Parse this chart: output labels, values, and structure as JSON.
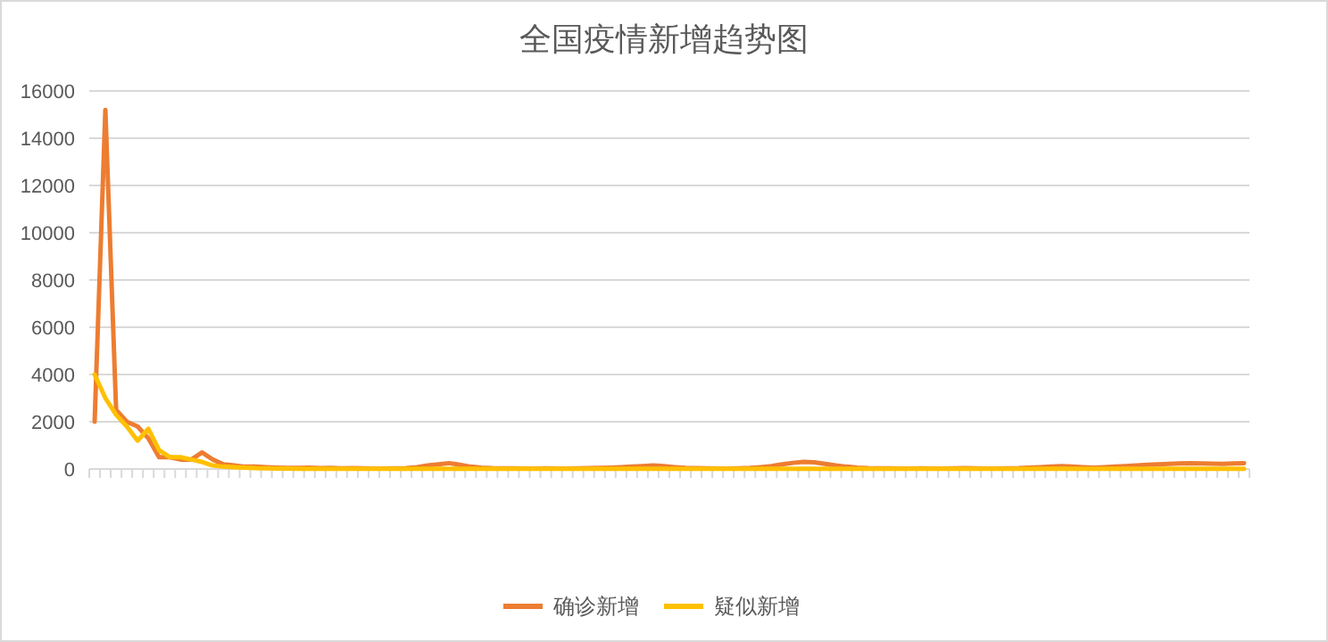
{
  "chart_data": {
    "type": "line",
    "title": "全国疫情新增趋势图",
    "categories": [
      null,
      null,
      null,
      null,
      null,
      null,
      null,
      null,
      null,
      null,
      null,
      null,
      null,
      null,
      null,
      null,
      null,
      null,
      null,
      null,
      null,
      null,
      null,
      null,
      null,
      null,
      null,
      null,
      null,
      null,
      null,
      null,
      null,
      null,
      null,
      null,
      null,
      null,
      null,
      null,
      null,
      null,
      null,
      null,
      null,
      null,
      null,
      null,
      null,
      null,
      null,
      null,
      null,
      null,
      null,
      null,
      null,
      null,
      null,
      null,
      null,
      null,
      null,
      null,
      null,
      null,
      null,
      null,
      null,
      null,
      null,
      null,
      null,
      null,
      null,
      null,
      null,
      null,
      null,
      null,
      null,
      null,
      null,
      null,
      null,
      null,
      null,
      null,
      null,
      null,
      null,
      null,
      null,
      null,
      null,
      null,
      null,
      null,
      null,
      null,
      null,
      null,
      null,
      null,
      null,
      null,
      null,
      null
    ],
    "series": [
      {
        "name": "确诊新增",
        "color": "#ed7d31",
        "values": [
          2000,
          15200,
          2500,
          2000,
          1800,
          1300,
          500,
          500,
          400,
          400,
          700,
          400,
          200,
          150,
          100,
          100,
          80,
          60,
          50,
          50,
          60,
          40,
          50,
          30,
          40,
          30,
          20,
          20,
          30,
          40,
          80,
          150,
          200,
          250,
          180,
          100,
          60,
          40,
          30,
          30,
          20,
          20,
          30,
          20,
          20,
          30,
          40,
          50,
          60,
          80,
          100,
          120,
          150,
          120,
          80,
          50,
          40,
          30,
          20,
          20,
          30,
          50,
          80,
          120,
          200,
          260,
          300,
          280,
          220,
          150,
          100,
          60,
          40,
          30,
          30,
          20,
          20,
          30,
          20,
          20,
          30,
          40,
          30,
          20,
          20,
          30,
          40,
          60,
          80,
          100,
          120,
          100,
          80,
          60,
          80,
          100,
          120,
          150,
          180,
          200,
          220,
          240,
          250,
          240,
          230,
          220,
          240,
          250
        ]
      },
      {
        "name": "疑似新增",
        "color": "#ffc000",
        "values": [
          4000,
          3000,
          2300,
          1800,
          1200,
          1700,
          800,
          500,
          500,
          400,
          300,
          150,
          100,
          80,
          60,
          40,
          30,
          20,
          20,
          10,
          10,
          10,
          10,
          10,
          10,
          10,
          10,
          10,
          10,
          10,
          10,
          10,
          10,
          10,
          10,
          10,
          10,
          10,
          10,
          10,
          10,
          10,
          10,
          10,
          10,
          10,
          10,
          10,
          10,
          10,
          10,
          10,
          10,
          10,
          10,
          10,
          10,
          10,
          10,
          10,
          10,
          10,
          10,
          10,
          10,
          10,
          10,
          10,
          10,
          10,
          10,
          10,
          10,
          10,
          10,
          10,
          10,
          10,
          10,
          10,
          10,
          10,
          10,
          10,
          10,
          10,
          10,
          10,
          10,
          10,
          10,
          10,
          10,
          10,
          10,
          10,
          10,
          10,
          10,
          10,
          10,
          10,
          10,
          10,
          10,
          10,
          10,
          10
        ]
      }
    ],
    "ylim": [
      0,
      16000
    ],
    "yticks": [
      0,
      2000,
      4000,
      6000,
      8000,
      10000,
      12000,
      14000,
      16000
    ],
    "grid": "y",
    "legend": "bottom",
    "marker": "none",
    "line_style": "solid"
  }
}
